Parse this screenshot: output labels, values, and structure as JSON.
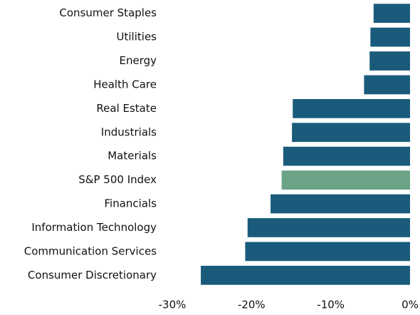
{
  "chart_data": {
    "type": "barh",
    "categories": [
      "Consumer Staples",
      "Utilities",
      "Energy",
      "Health Care",
      "Real Estate",
      "Industrials",
      "Materials",
      "S&P 500 Index",
      "Financials",
      "Information Technology",
      "Communication Services",
      "Consumer Discretionary"
    ],
    "values": [
      -4.6,
      -5.0,
      -5.1,
      -5.8,
      -14.8,
      -14.9,
      -16.0,
      -16.2,
      -17.6,
      -20.5,
      -20.8,
      -26.4
    ],
    "colors": [
      "#1a5b7c",
      "#1a5b7c",
      "#1a5b7c",
      "#1a5b7c",
      "#1a5b7c",
      "#1a5b7c",
      "#1a5b7c",
      "#6aa385",
      "#1a5b7c",
      "#1a5b7c",
      "#1a5b7c",
      "#1a5b7c"
    ],
    "xlim": [
      -30,
      0
    ],
    "xticks": [
      {
        "value": -30,
        "label": "-30%"
      },
      {
        "value": -20,
        "label": "-20%"
      },
      {
        "value": -10,
        "label": "-10%"
      },
      {
        "value": 0,
        "label": "0%"
      }
    ],
    "grid": false
  }
}
